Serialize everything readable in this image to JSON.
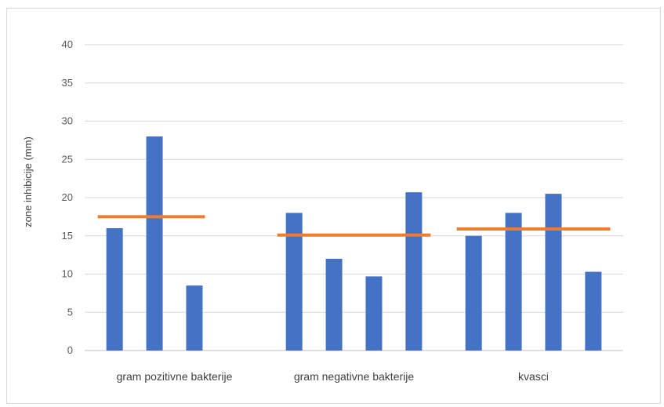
{
  "chart_data": {
    "type": "bar",
    "ylabel": "zone inhibicije (mm)",
    "ylim": [
      0,
      40
    ],
    "yticks": [
      "0",
      "5",
      "10",
      "15",
      "20",
      "25",
      "30",
      "35",
      "40"
    ],
    "grid": true,
    "legend": "none",
    "groups": [
      {
        "category": "gram pozitivne bakterije",
        "values": [
          16,
          28,
          8.5
        ],
        "average": 17.5
      },
      {
        "category": "gram negativne bakterije",
        "values": [
          18,
          12,
          9.7,
          20.7
        ],
        "average": 15.1
      },
      {
        "category": "kvasci",
        "values": [
          15,
          18,
          20.5,
          10.3
        ],
        "average": 15.9
      }
    ],
    "colors": {
      "bars": "#4472c4",
      "average_line": "#ed7d31",
      "grid": "#d9d9d9",
      "axis": "#bfbfbf"
    }
  }
}
